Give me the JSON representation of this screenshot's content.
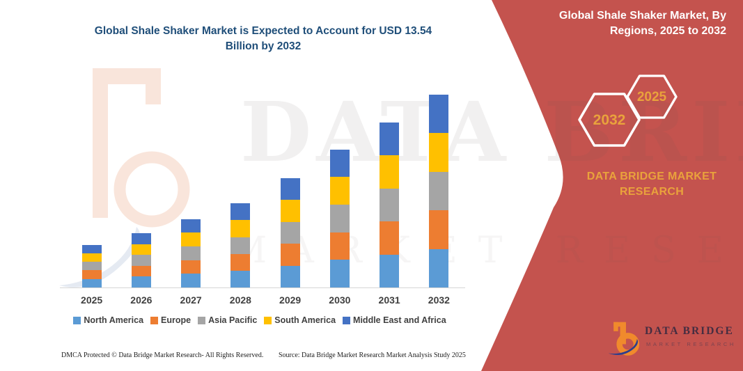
{
  "theme": {
    "red": "#C4534E",
    "gold": "#E9A23C",
    "title_blue": "#1F4E79",
    "white": "#FFFFFF",
    "logo_orange": "#F08A2C",
    "logo_navy": "#2E3E8C",
    "wm_peach": "#F5CDB8",
    "wm_blue": "#CCD6E6"
  },
  "main": {
    "title": "Global Shale Shaker Market is Expected to Account for USD 13.54 Billion by 2032"
  },
  "sidebar": {
    "title": "Global Shale Shaker Market, By Regions, 2025 to 2032",
    "hexagons": [
      {
        "label": "2032"
      },
      {
        "label": "2025"
      }
    ],
    "brand": "DATA BRIDGE MARKET RESEARCH",
    "logo": {
      "name": "DATA BRIDGE",
      "subtitle": "MARKET RESEARCH"
    }
  },
  "watermark": {
    "line1": "DATA BRIDGE",
    "line2": "MARKET RESEARCH"
  },
  "footer": {
    "dmca": "DMCA Protected © Data Bridge Market Research-  All Rights Reserved.",
    "source": "Source: Data Bridge Market Research  Market Analysis Study 2025"
  },
  "chart_data": {
    "type": "bar",
    "stacked": true,
    "title": "Global Shale Shaker Market is Expected to Account for USD 13.54 Billion by 2032",
    "unit": "USD Billion",
    "categories": [
      "2025",
      "2026",
      "2027",
      "2028",
      "2029",
      "2030",
      "2031",
      "2032"
    ],
    "series": [
      {
        "name": "North America",
        "color": "#5B9BD5",
        "values": [
          0.6,
          0.76,
          0.96,
          1.18,
          1.54,
          1.94,
          2.32,
          2.71
        ]
      },
      {
        "name": "Europe",
        "color": "#ED7D31",
        "values": [
          0.6,
          0.76,
          0.96,
          1.18,
          1.54,
          1.94,
          2.32,
          2.71
        ]
      },
      {
        "name": "Asia Pacific",
        "color": "#A5A5A5",
        "values": [
          0.6,
          0.76,
          0.96,
          1.18,
          1.54,
          1.94,
          2.32,
          2.71
        ]
      },
      {
        "name": "South America",
        "color": "#FFC000",
        "values": [
          0.6,
          0.76,
          0.96,
          1.18,
          1.54,
          1.94,
          2.32,
          2.71
        ]
      },
      {
        "name": "Middle East and Africa",
        "color": "#4472C4",
        "values": [
          0.6,
          0.76,
          0.96,
          1.18,
          1.54,
          1.94,
          2.32,
          2.71
        ]
      }
    ],
    "totals": [
      3.0,
      3.8,
      4.8,
      5.9,
      7.7,
      9.7,
      11.6,
      13.54
    ],
    "xlabel": "",
    "ylabel": "",
    "ylim": [
      0,
      14
    ],
    "y_axis_visible": false,
    "grid": false,
    "legend_position": "bottom"
  }
}
